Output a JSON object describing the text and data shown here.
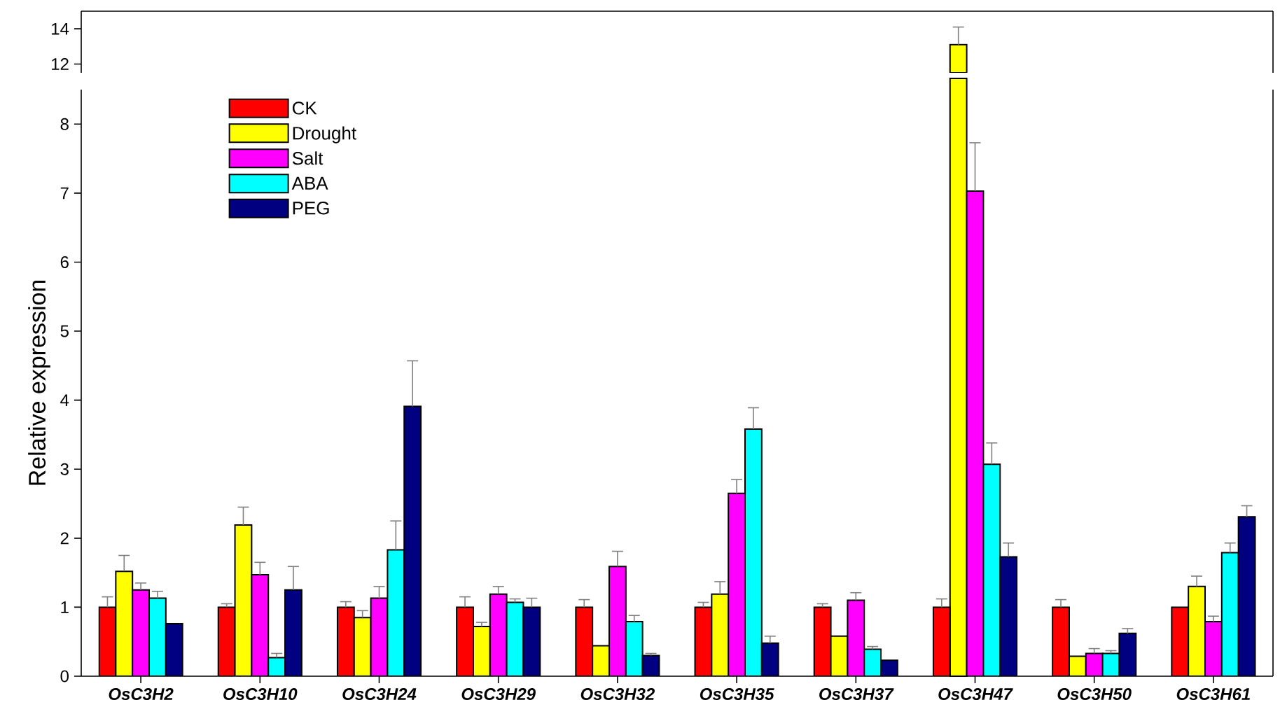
{
  "chart_data": [
    {
      "type": "bar",
      "categories": [
        null,
        null,
        null,
        null,
        null,
        null,
        null,
        null,
        null,
        null
      ],
      "ylim": [
        11.5,
        15
      ],
      "yticks": [
        12,
        14
      ],
      "tick_labels": "y",
      "legend": false,
      "series": [
        {
          "color": "#ffff00",
          "values": [
            null,
            null,
            null,
            null,
            null,
            null,
            null,
            13.1,
            null,
            null
          ],
          "errors": [
            null,
            null,
            null,
            null,
            null,
            null,
            null,
            1.0,
            null,
            null
          ]
        }
      ]
    },
    {
      "type": "bar",
      "ylabel": "Relative expression",
      "categories": [
        "OsC3H2",
        "OsC3H10",
        "OsC3H24",
        "OsC3H29",
        "OsC3H32",
        "OsC3H35",
        "OsC3H37",
        "OsC3H47",
        "OsC3H50",
        "OsC3H61"
      ],
      "ylim": [
        0,
        8.5
      ],
      "yticks": [
        0,
        1,
        2,
        3,
        4,
        5,
        6,
        7,
        8
      ],
      "legend": "top left",
      "series": [
        {
          "name": "CK",
          "color": "#ff0000",
          "values": [
            1.0,
            1.0,
            1.0,
            1.0,
            1.0,
            1.0,
            1.0,
            1.0,
            1.0,
            1.0
          ],
          "errors": [
            0.15,
            0.05,
            0.08,
            0.15,
            0.11,
            0.07,
            0.05,
            0.12,
            0.11,
            null
          ]
        },
        {
          "name": "Drought",
          "color": "#ffff00",
          "values": [
            1.52,
            2.19,
            0.85,
            0.72,
            0.44,
            1.19,
            0.58,
            null,
            0.29,
            1.3
          ],
          "errors": [
            0.23,
            0.26,
            0.1,
            0.06,
            null,
            0.18,
            null,
            null,
            null,
            0.15
          ]
        },
        {
          "name": "Salt",
          "color": "#ff00ff",
          "values": [
            1.25,
            1.47,
            1.13,
            1.19,
            1.59,
            2.65,
            1.1,
            7.03,
            0.33,
            0.79
          ],
          "errors": [
            0.1,
            0.18,
            0.17,
            0.11,
            0.22,
            0.2,
            0.11,
            0.7,
            0.07,
            0.08
          ]
        },
        {
          "name": "ABA",
          "color": "#00ffff",
          "values": [
            1.13,
            0.27,
            1.83,
            1.07,
            0.79,
            3.58,
            0.39,
            3.07,
            0.33,
            1.79
          ],
          "errors": [
            0.1,
            0.06,
            0.42,
            0.05,
            0.09,
            0.31,
            0.04,
            0.31,
            0.04,
            0.14
          ]
        },
        {
          "name": "PEG",
          "color": "#000080",
          "values": [
            0.76,
            1.25,
            3.91,
            1.0,
            0.3,
            0.48,
            0.23,
            1.73,
            0.62,
            2.31
          ],
          "errors": [
            null,
            0.34,
            0.66,
            0.13,
            0.03,
            0.1,
            null,
            0.2,
            0.07,
            0.16
          ]
        }
      ]
    }
  ]
}
